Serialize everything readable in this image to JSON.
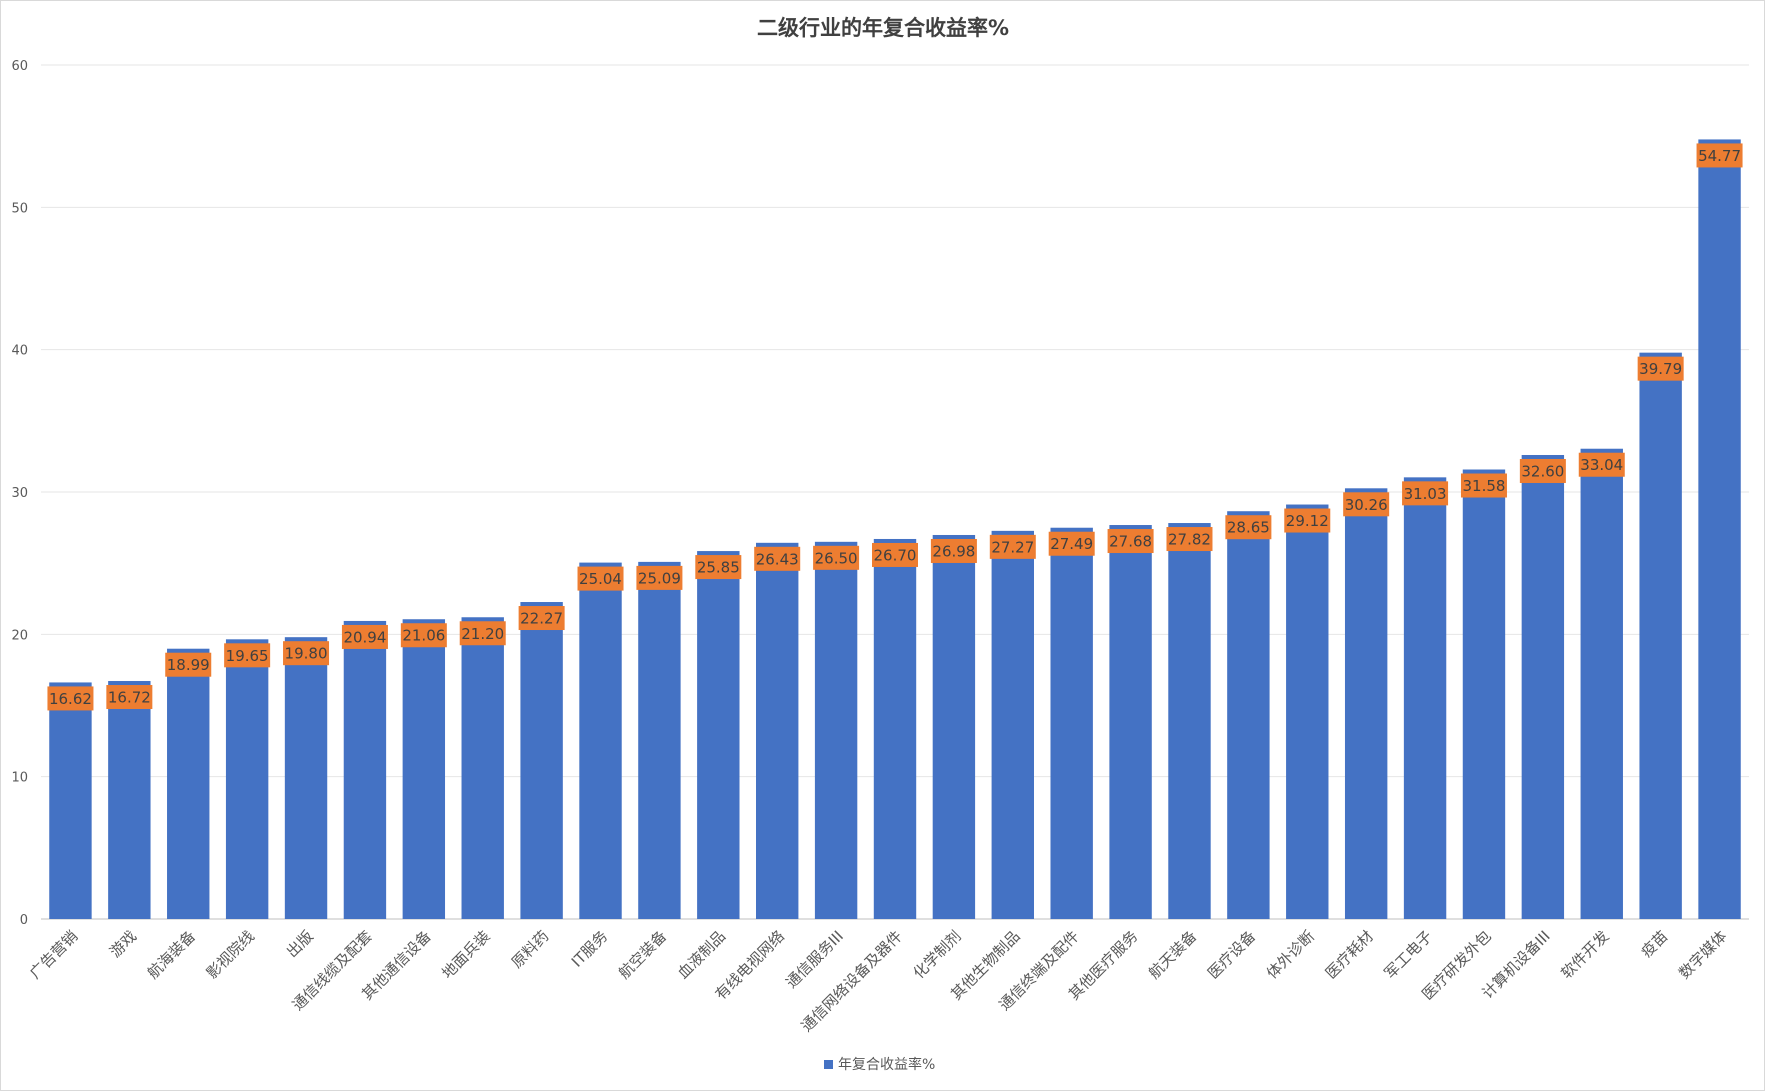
{
  "chart_data": {
    "type": "bar",
    "title": "二级行业的年复合收益率%",
    "xlabel": "",
    "ylabel": "",
    "ylim": [
      0,
      60
    ],
    "yticks": [
      0,
      10,
      20,
      30,
      40,
      50,
      60
    ],
    "grid": true,
    "legend_position": "bottom",
    "bar_color": "#4472C4",
    "label_bg_color": "#ED7D31",
    "categories": [
      "广告营销",
      "游戏",
      "航海装备",
      "影视院线",
      "出版",
      "通信线缆及配套",
      "其他通信设备",
      "地面兵装",
      "原料药",
      "IT服务",
      "航空装备",
      "血液制品",
      "有线电视网络",
      "通信服务III",
      "通信网络设备及器件",
      "化学制剂",
      "其他生物制品",
      "通信终端及配件",
      "其他医疗服务",
      "航天装备",
      "医疗设备",
      "体外诊断",
      "医疗耗材",
      "军工电子",
      "医疗研发外包",
      "计算机设备III",
      "软件开发",
      "疫苗",
      "数字媒体"
    ],
    "series": [
      {
        "name": "年复合收益率%",
        "values": [
          16.62,
          16.72,
          18.99,
          19.65,
          19.8,
          20.94,
          21.06,
          21.2,
          22.27,
          25.04,
          25.09,
          25.85,
          26.43,
          26.5,
          26.7,
          26.98,
          27.27,
          27.49,
          27.68,
          27.82,
          28.65,
          29.12,
          30.26,
          31.03,
          31.58,
          32.6,
          33.04,
          39.79,
          54.77
        ],
        "labels": [
          "16.62",
          "16.72",
          "18.99",
          "19.65",
          "19.80",
          "20.94",
          "21.06",
          "21.20",
          "22.27",
          "25.04",
          "25.09",
          "25.85",
          "26.43",
          "26.50",
          "26.70",
          "26.98",
          "27.27",
          "27.49",
          "27.68",
          "27.82",
          "28.65",
          "29.12",
          "30.26",
          "31.03",
          "31.58",
          "32.60",
          "33.04",
          "39.79",
          "54.77"
        ]
      }
    ]
  }
}
